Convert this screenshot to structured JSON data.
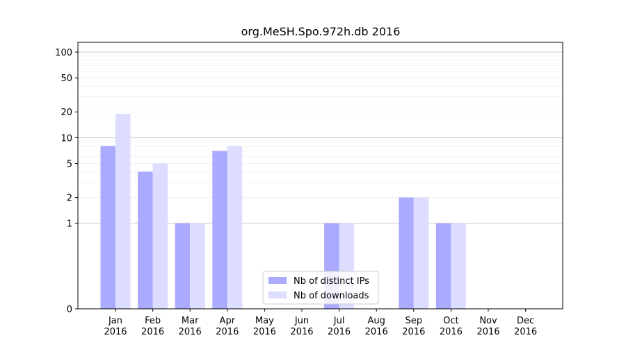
{
  "chart_data": {
    "type": "bar",
    "title": "org.MeSH.Spo.972h.db 2016",
    "xlabel": "",
    "ylabel": "",
    "yscale": "symlog",
    "ylim": [
      0,
      130
    ],
    "yticks": [
      0,
      1,
      2,
      5,
      10,
      20,
      50,
      100
    ],
    "grid": true,
    "legend_position": "bottom-center",
    "categories": [
      [
        "Jan",
        "2016"
      ],
      [
        "Feb",
        "2016"
      ],
      [
        "Mar",
        "2016"
      ],
      [
        "Apr",
        "2016"
      ],
      [
        "May",
        "2016"
      ],
      [
        "Jun",
        "2016"
      ],
      [
        "Jul",
        "2016"
      ],
      [
        "Aug",
        "2016"
      ],
      [
        "Sep",
        "2016"
      ],
      [
        "Oct",
        "2016"
      ],
      [
        "Nov",
        "2016"
      ],
      [
        "Dec",
        "2016"
      ]
    ],
    "series": [
      {
        "name": "Nb of distinct IPs",
        "color": "#aaaaff",
        "values": [
          8,
          4,
          1,
          7,
          0,
          0,
          1,
          0,
          2,
          1,
          0,
          0
        ]
      },
      {
        "name": "Nb of downloads",
        "color": "#ddddff",
        "values": [
          19,
          5,
          1,
          8,
          0,
          0,
          1,
          0,
          2,
          1,
          0,
          0
        ]
      }
    ]
  }
}
